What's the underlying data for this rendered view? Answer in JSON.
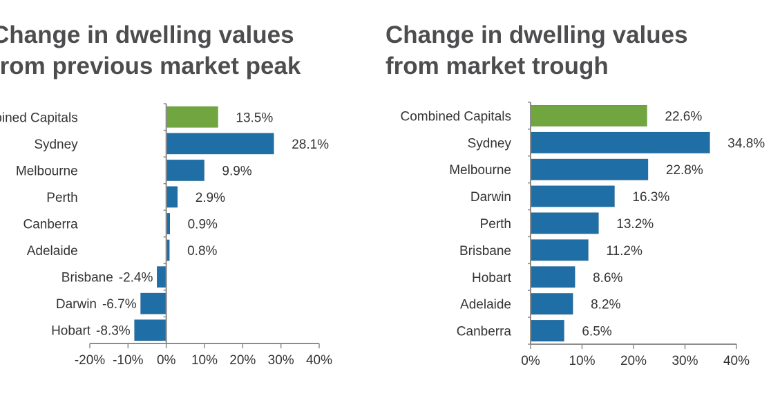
{
  "chart_data": [
    {
      "type": "bar",
      "orientation": "horizontal",
      "title": [
        "Change in dwelling values",
        "from previous market peak"
      ],
      "categories": [
        "Combined Capitals",
        "Sydney",
        "Melbourne",
        "Perth",
        "Canberra",
        "Adelaide",
        "Brisbane",
        "Darwin",
        "Hobart"
      ],
      "values": [
        13.5,
        28.1,
        9.9,
        2.9,
        0.9,
        0.8,
        -2.4,
        -6.7,
        -8.3
      ],
      "value_labels": [
        "13.5%",
        "28.1%",
        "9.9%",
        "2.9%",
        "0.9%",
        "0.8%",
        "-2.4%",
        "-6.7%",
        "-8.3%"
      ],
      "highlight_index": 0,
      "xlim": [
        -20,
        40
      ],
      "x_ticks": [
        -20,
        -10,
        0,
        10,
        20,
        30,
        40
      ],
      "x_tick_labels": [
        "-20%",
        "-10%",
        "0%",
        "10%",
        "20%",
        "30%",
        "40%"
      ],
      "grid": false
    },
    {
      "type": "bar",
      "orientation": "horizontal",
      "title": [
        "Change in dwelling values",
        "from market trough"
      ],
      "categories": [
        "Combined Capitals",
        "Sydney",
        "Melbourne",
        "Darwin",
        "Perth",
        "Brisbane",
        "Hobart",
        "Adelaide",
        "Canberra"
      ],
      "values": [
        22.6,
        34.8,
        22.8,
        16.3,
        13.2,
        11.2,
        8.6,
        8.2,
        6.5
      ],
      "value_labels": [
        "22.6%",
        "34.8%",
        "22.8%",
        "16.3%",
        "13.2%",
        "11.2%",
        "8.6%",
        "8.2%",
        "6.5%"
      ],
      "highlight_index": 0,
      "xlim": [
        0,
        40
      ],
      "x_ticks": [
        0,
        10,
        20,
        30,
        40
      ],
      "x_tick_labels": [
        "0%",
        "10%",
        "20%",
        "30%",
        "40%"
      ],
      "grid": false
    }
  ],
  "colors": {
    "highlight": "#70a53f",
    "bar": "#1f6ea6",
    "axis": "#8c8c8c",
    "title": "#4d4d4f"
  }
}
